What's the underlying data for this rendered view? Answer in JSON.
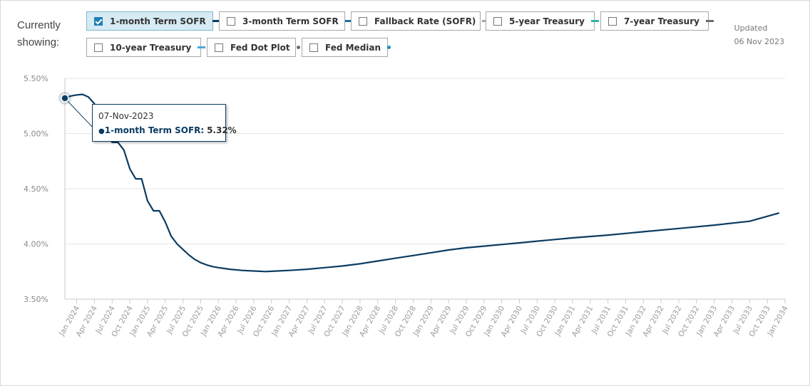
{
  "header": {
    "showing_label": "Currently showing:",
    "updated_label": "Updated",
    "updated_date": "06 Nov 2023"
  },
  "toggles": [
    {
      "label": "1-month Term SOFR",
      "checked": true,
      "color": "#0b3c62",
      "marker": "line"
    },
    {
      "label": "3-month Term SOFR",
      "checked": false,
      "color": "#1f6fa0",
      "marker": "line"
    },
    {
      "label": "Fallback Rate (SOFR)",
      "checked": false,
      "color": "#a6a6a6",
      "marker": "line"
    },
    {
      "label": "5-year Treasury",
      "checked": false,
      "color": "#2db5a3",
      "marker": "line"
    },
    {
      "label": "7-year Treasury",
      "checked": false,
      "color": "#6b6b6b",
      "marker": "line"
    },
    {
      "label": "10-year Treasury",
      "checked": false,
      "color": "#4aa8d8",
      "marker": "line"
    },
    {
      "label": "Fed Dot Plot",
      "checked": false,
      "color": "#6b6b6b",
      "marker": "dot"
    },
    {
      "label": "Fed Median",
      "checked": false,
      "color": "#1a8fb0",
      "marker": "dot"
    }
  ],
  "tooltip": {
    "date": "07-Nov-2023",
    "series": "1-month Term SOFR:",
    "value": "5.32%"
  },
  "chart_data": {
    "type": "line",
    "title": "",
    "xlabel": "",
    "ylabel": "",
    "ylim": [
      3.5,
      5.5
    ],
    "y_ticks": [
      "3.50%",
      "4.00%",
      "4.50%",
      "5.00%",
      "5.50%"
    ],
    "x_ticks": [
      "Jan 2024",
      "Apr 2024",
      "Jul 2024",
      "Oct 2024",
      "Jan 2025",
      "Apr 2025",
      "Jul 2025",
      "Oct 2025",
      "Jan 2026",
      "Apr 2026",
      "Jul 2026",
      "Oct 2026",
      "Jan 2027",
      "Apr 2027",
      "Jul 2027",
      "Oct 2027",
      "Jan 2028",
      "Apr 2028",
      "Jul 2028",
      "Oct 2028",
      "Jan 2029",
      "Apr 2029",
      "Jul 2029",
      "Oct 2029",
      "Jan 2030",
      "Apr 2030",
      "Jul 2030",
      "Oct 2030",
      "Jan 2031",
      "Apr 2031",
      "Jul 2031",
      "Oct 2031",
      "Jan 2032",
      "Apr 2032",
      "Jul 2032",
      "Oct 2032",
      "Jan 2033",
      "Apr 2033",
      "Jul 2033",
      "Oct 2033",
      "Jan 2034"
    ],
    "x_start": "2023-11",
    "x_end": "2034-01",
    "grid": true,
    "legend": "none",
    "series": [
      {
        "name": "1-month Term SOFR",
        "color": "#0b3c62",
        "x": [
          "2023-11",
          "2023-12",
          "2024-01",
          "2024-02",
          "2024-03",
          "2024-04",
          "2024-05",
          "2024-06",
          "2024-07",
          "2024-08",
          "2024-09",
          "2024-10",
          "2024-11",
          "2024-12",
          "2025-01",
          "2025-02",
          "2025-03",
          "2025-04",
          "2025-05",
          "2025-06",
          "2025-07",
          "2025-08",
          "2025-09",
          "2025-10",
          "2025-11",
          "2025-12",
          "2026-01",
          "2026-03",
          "2026-05",
          "2026-07",
          "2026-09",
          "2026-11",
          "2027-01",
          "2027-04",
          "2027-07",
          "2027-10",
          "2028-01",
          "2028-04",
          "2028-07",
          "2028-10",
          "2029-01",
          "2029-04",
          "2029-07",
          "2029-10",
          "2030-01",
          "2030-04",
          "2030-07",
          "2030-10",
          "2031-01",
          "2031-07",
          "2032-01",
          "2032-07",
          "2033-01",
          "2033-07",
          "2033-12"
        ],
        "values": [
          5.32,
          5.34,
          5.35,
          5.355,
          5.33,
          5.27,
          5.16,
          5.03,
          4.92,
          4.92,
          4.85,
          4.68,
          4.59,
          4.59,
          4.39,
          4.3,
          4.3,
          4.2,
          4.07,
          4.0,
          3.95,
          3.9,
          3.86,
          3.83,
          3.81,
          3.795,
          3.785,
          3.77,
          3.76,
          3.755,
          3.75,
          3.755,
          3.76,
          3.77,
          3.785,
          3.8,
          3.82,
          3.845,
          3.87,
          3.895,
          3.92,
          3.945,
          3.965,
          3.98,
          3.995,
          4.01,
          4.025,
          4.04,
          4.055,
          4.08,
          4.11,
          4.14,
          4.17,
          4.205,
          4.28
        ]
      }
    ],
    "highlight": {
      "x": "2023-11",
      "value": 5.32
    }
  }
}
